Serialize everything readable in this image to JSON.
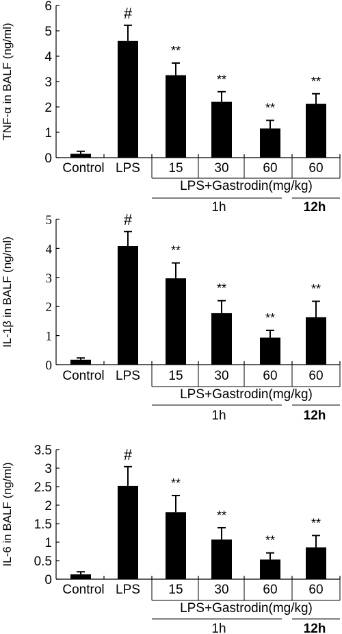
{
  "chart_data": [
    {
      "type": "bar",
      "ylabel": "TNF-α in BALF (ng/ml)",
      "ylim": [
        0,
        6
      ],
      "yticks": [
        "0",
        "1",
        "2",
        "3",
        "4",
        "5",
        "6"
      ],
      "categories": [
        "Control",
        "LPS",
        "15",
        "30",
        "60",
        "60"
      ],
      "values": [
        0.15,
        4.6,
        3.25,
        2.2,
        1.15,
        2.12
      ],
      "errors": [
        0.1,
        0.62,
        0.48,
        0.4,
        0.32,
        0.4
      ],
      "annotations": [
        "",
        "#",
        "**",
        "**",
        "**",
        "**"
      ],
      "group_label": "LPS+Gastrodin(mg/kg)",
      "time_labels": [
        "1h",
        "12h"
      ]
    },
    {
      "type": "bar",
      "ylabel": "IL-1β  in BALF (ng/ml)",
      "ylim": [
        0,
        5
      ],
      "yticks": [
        "0",
        "1",
        "2",
        "3",
        "4",
        "5"
      ],
      "categories": [
        "Control",
        "LPS",
        "15",
        "30",
        "60",
        "60"
      ],
      "values": [
        0.17,
        4.08,
        2.97,
        1.77,
        0.93,
        1.63
      ],
      "errors": [
        0.06,
        0.5,
        0.53,
        0.43,
        0.25,
        0.55
      ],
      "annotations": [
        "",
        "#",
        "**",
        "**",
        "**",
        "**"
      ],
      "group_label": "LPS+Gastrodin(mg/kg)",
      "time_labels": [
        "1h",
        "12h"
      ]
    },
    {
      "type": "bar",
      "ylabel": "IL-6 in BALF (ng/ml)",
      "ylim": [
        0,
        3.5
      ],
      "yticks": [
        "0",
        "0.5",
        "1",
        "1.5",
        "2",
        "2.5",
        "3",
        "3.5"
      ],
      "categories": [
        "Control",
        "LPS",
        "15",
        "30",
        "60",
        "60"
      ],
      "values": [
        0.13,
        2.52,
        1.81,
        1.07,
        0.53,
        0.86
      ],
      "errors": [
        0.07,
        0.52,
        0.45,
        0.32,
        0.18,
        0.32
      ],
      "annotations": [
        "",
        "#",
        "**",
        "**",
        "**",
        "**"
      ],
      "group_label": "LPS+Gastrodin(mg/kg)",
      "time_labels": [
        "1h",
        "12h"
      ]
    }
  ]
}
